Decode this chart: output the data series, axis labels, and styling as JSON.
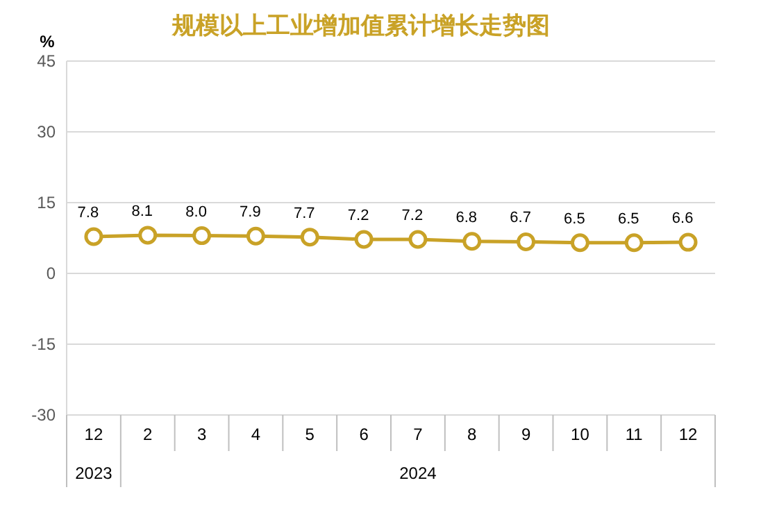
{
  "chart_data": {
    "type": "line",
    "title": "规模以上工业增加值累计增长走势图",
    "ylabel": "%",
    "categories": [
      "12",
      "2",
      "3",
      "4",
      "5",
      "6",
      "7",
      "8",
      "9",
      "10",
      "11",
      "12"
    ],
    "series": [
      {
        "color": "#c9a227",
        "values": [
          7.8,
          8.1,
          8.0,
          7.9,
          7.7,
          7.2,
          7.2,
          6.8,
          6.7,
          6.5,
          6.5,
          6.6
        ],
        "value_labels": [
          "7.8",
          "8.1",
          "8.0",
          "7.9",
          "7.7",
          "7.2",
          "7.2",
          "6.8",
          "6.7",
          "6.5",
          "6.5",
          "6.6"
        ]
      }
    ],
    "ylim": [
      -30,
      45
    ],
    "yticks": [
      -30,
      -15,
      0,
      15,
      30,
      45
    ],
    "grid": "y",
    "marker": "circle",
    "line_style": "solid",
    "annotations": [
      "2023",
      "2024"
    ]
  }
}
